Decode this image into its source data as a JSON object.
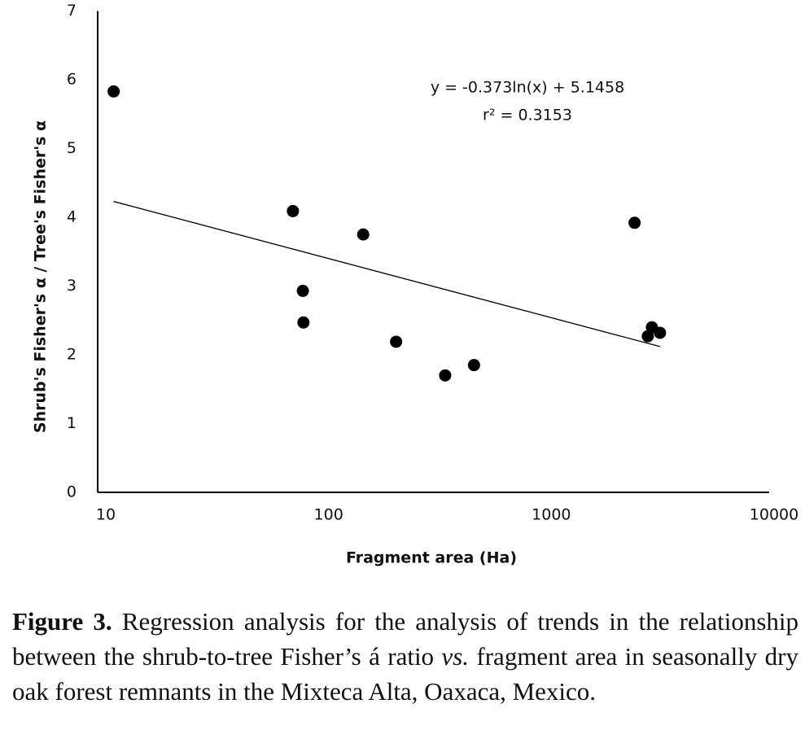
{
  "chart_data": {
    "type": "scatter",
    "x_label": "Fragment area (Ha)",
    "y_label": "Shrub's Fisher's α / Tree's Fisher's α",
    "series": [
      {
        "color": "#000000",
        "x": [
          11.6,
          74,
          82,
          82.5,
          153,
          215,
          357,
          481,
          2530,
          2900,
          3025,
          3290
        ],
        "values": [
          5.83,
          4.09,
          2.93,
          2.47,
          3.75,
          2.19,
          1.7,
          1.85,
          3.92,
          2.27,
          2.4,
          2.32
        ]
      }
    ],
    "trendline": {
      "equation": "y = -0.373ln(x) + 5.1458",
      "r2": "r² = 0.3153",
      "color": "#000000",
      "x": [
        11.6,
        3290
      ],
      "values": [
        4.23,
        2.12
      ]
    },
    "xlog": true,
    "xlim": [
      10,
      10000
    ],
    "xticks": [
      10,
      100,
      1000,
      10000
    ],
    "ylim": [
      0,
      7
    ],
    "yticks": [
      0,
      1,
      2,
      3,
      4,
      5,
      6,
      7
    ],
    "grid": false
  },
  "caption": {
    "label": "Figure 3.",
    "text": " Regression analysis for the analysis of trends in the relationship between the shrub-to-tree Fisher’s á ratio ",
    "emphasis": "vs.",
    "text_end": " fragment area in seasonally dry oak forest remnants in the Mixteca Alta, Oaxaca, Mexico."
  }
}
